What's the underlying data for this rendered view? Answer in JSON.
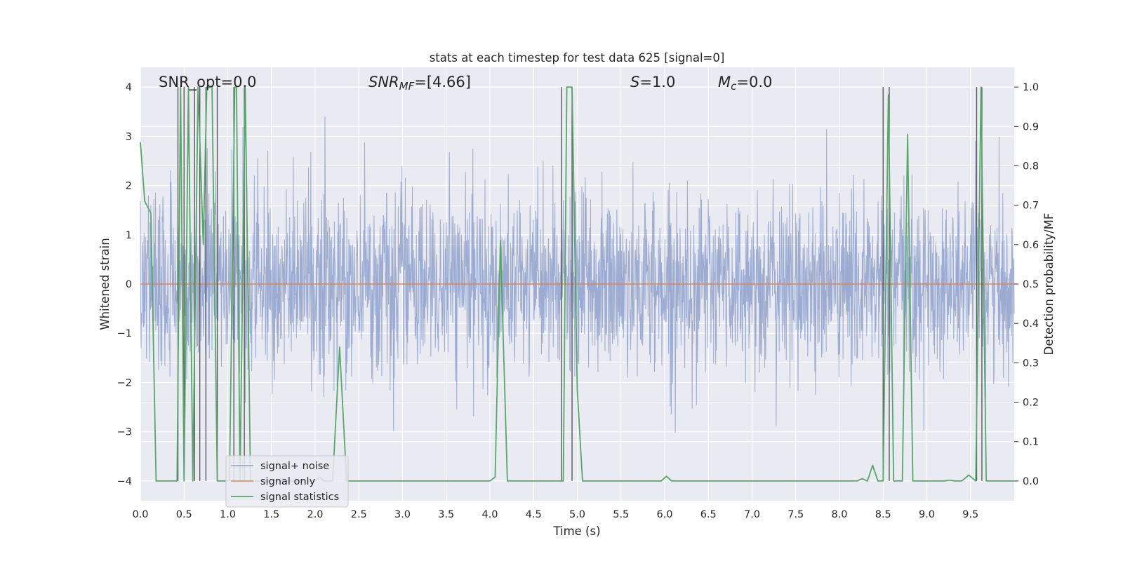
{
  "chart_data": {
    "type": "line",
    "title": "stats at each timestep for test data 625 [signal=0]",
    "xlabel": "Time (s)",
    "ylabel_left": "Whitened strain",
    "ylabel_right": "Detection probability/MF",
    "xlim": [
      0.0,
      10.0
    ],
    "ylim_left": [
      -4.4,
      4.4
    ],
    "ylim_right": [
      -0.05,
      1.05
    ],
    "x_ticks": [
      "0.0",
      "0.5",
      "1.0",
      "1.5",
      "2.0",
      "2.5",
      "3.0",
      "3.5",
      "4.0",
      "4.5",
      "5.0",
      "5.5",
      "6.0",
      "6.5",
      "7.0",
      "7.5",
      "8.0",
      "8.5",
      "9.0",
      "9.5"
    ],
    "y_ticks_left": [
      "4",
      "3",
      "2",
      "1",
      "0",
      "−1",
      "−2",
      "−3",
      "−4"
    ],
    "y_ticks_right": [
      "1.0",
      "0.9",
      "0.8",
      "0.7",
      "0.6",
      "0.5",
      "0.4",
      "0.3",
      "0.2",
      "0.1",
      "0.0"
    ],
    "grid": true,
    "legend_position": "lower-left",
    "annotations": {
      "snr_opt": "SNR_opt=0.0",
      "snr_mf_prefix": "SNR",
      "snr_mf_sub": "MF",
      "snr_mf_value": "=[4.66]",
      "s_symbol": "S",
      "s_value": "=1.0",
      "mc_symbol": "M",
      "mc_sub": "c",
      "mc_value": "=0.0"
    },
    "series": [
      {
        "name": "signal+ noise",
        "color": "#8da0cb",
        "axis": "left",
        "description_values": {
          "envelope_upper": 1.7,
          "envelope_lower": -1.7,
          "peak_upper": 4.0,
          "peak_lower": -3.6
        }
      },
      {
        "name": "signal only",
        "color": "#dd8452",
        "axis": "left",
        "values_constant": 0.0
      },
      {
        "name": "signal statistics",
        "color": "#55a868",
        "axis": "right",
        "x": [
          0.0,
          0.05,
          0.12,
          0.18,
          0.25,
          0.3,
          0.36,
          0.42,
          0.46,
          0.5,
          0.55,
          0.6,
          0.66,
          0.72,
          0.76,
          0.82,
          0.88,
          0.95,
          1.02,
          1.08,
          1.1,
          1.14,
          1.2,
          1.26,
          1.35,
          2.0,
          2.05,
          2.1,
          2.2,
          2.28,
          2.36,
          2.4,
          2.6,
          3.0,
          3.5,
          4.0,
          4.06,
          4.12,
          4.2,
          4.3,
          4.8,
          4.84,
          4.88,
          4.94,
          5.0,
          5.06,
          5.5,
          5.96,
          6.02,
          6.08,
          6.5,
          7.5,
          8.2,
          8.26,
          8.32,
          8.38,
          8.44,
          8.5,
          8.56,
          8.62,
          8.72,
          8.78,
          8.84,
          8.9,
          9.0,
          9.2,
          9.26,
          9.32,
          9.4,
          9.48,
          9.56,
          9.62,
          9.68,
          9.76,
          10.0
        ],
        "y": [
          0.86,
          0.71,
          0.68,
          0.0,
          0.0,
          0.0,
          0.0,
          0.0,
          1.0,
          0.0,
          1.0,
          0.0,
          1.0,
          0.6,
          1.0,
          1.0,
          0.0,
          0.0,
          0.0,
          1.0,
          1.0,
          0.0,
          1.0,
          0.0,
          0.0,
          0.0,
          0.01,
          0.0,
          0.0,
          0.34,
          0.0,
          0.0,
          0.0,
          0.0,
          0.0,
          0.0,
          0.01,
          0.61,
          0.0,
          0.0,
          0.0,
          0.0,
          1.0,
          1.0,
          0.23,
          0.0,
          0.0,
          0.0,
          0.012,
          0.0,
          0.0,
          0.0,
          0.0,
          0.006,
          0.0,
          0.04,
          0.0,
          0.0,
          0.98,
          0.0,
          0.0,
          0.88,
          0.0,
          0.0,
          0.0,
          0.0,
          0.002,
          0.0,
          0.0,
          0.015,
          0.0,
          1.0,
          0.0,
          0.0,
          0.0
        ]
      }
    ],
    "vertical_lines_x": [
      0.43,
      0.5,
      0.62,
      0.68,
      0.75,
      0.88,
      1.07,
      1.19,
      4.82,
      4.94,
      8.5,
      8.57,
      9.57,
      9.63
    ],
    "vertical_lines_color": "#595959"
  }
}
